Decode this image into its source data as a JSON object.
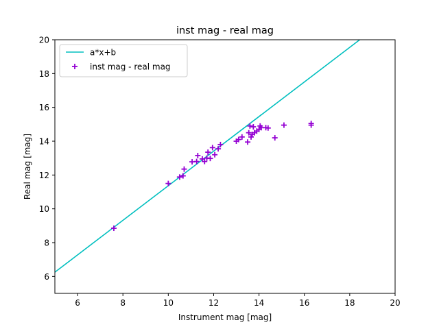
{
  "chart_data": {
    "type": "scatter",
    "title": "inst mag - real mag",
    "xlabel": "Instrument mag [mag]",
    "ylabel": "Real mag [mag]",
    "xlim": [
      5,
      20
    ],
    "ylim": [
      5,
      20
    ],
    "xticks": [
      6,
      8,
      10,
      12,
      14,
      16,
      18,
      20
    ],
    "yticks": [
      6,
      8,
      10,
      12,
      14,
      16,
      18,
      20
    ],
    "grid": false,
    "legend_position": "upper-left",
    "fit_line": {
      "name": "a*x+b",
      "color": "#00bfbf",
      "x": [
        5,
        18.44
      ],
      "y": [
        6.25,
        20.0
      ]
    },
    "series": [
      {
        "name": "inst mag - real mag",
        "marker": "plus",
        "color": "#9400d3",
        "points": [
          [
            7.6,
            8.85
          ],
          [
            10.0,
            11.5
          ],
          [
            10.5,
            11.88
          ],
          [
            10.65,
            11.95
          ],
          [
            10.7,
            12.35
          ],
          [
            11.05,
            12.78
          ],
          [
            11.25,
            12.8
          ],
          [
            11.3,
            13.15
          ],
          [
            11.5,
            12.95
          ],
          [
            11.6,
            12.8
          ],
          [
            11.7,
            13.0
          ],
          [
            11.75,
            13.35
          ],
          [
            11.85,
            12.98
          ],
          [
            11.95,
            13.62
          ],
          [
            12.05,
            13.2
          ],
          [
            12.2,
            13.55
          ],
          [
            12.3,
            13.8
          ],
          [
            13.0,
            14.0
          ],
          [
            13.1,
            14.1
          ],
          [
            13.25,
            14.25
          ],
          [
            13.5,
            13.95
          ],
          [
            13.55,
            14.5
          ],
          [
            13.6,
            14.9
          ],
          [
            13.65,
            14.25
          ],
          [
            13.7,
            14.4
          ],
          [
            13.75,
            14.85
          ],
          [
            13.8,
            14.5
          ],
          [
            13.9,
            14.6
          ],
          [
            14.0,
            14.7
          ],
          [
            14.05,
            14.9
          ],
          [
            14.1,
            14.8
          ],
          [
            14.3,
            14.8
          ],
          [
            14.4,
            14.78
          ],
          [
            14.7,
            14.2
          ],
          [
            15.1,
            14.95
          ],
          [
            16.3,
            14.95
          ],
          [
            16.3,
            15.05
          ]
        ]
      }
    ]
  }
}
